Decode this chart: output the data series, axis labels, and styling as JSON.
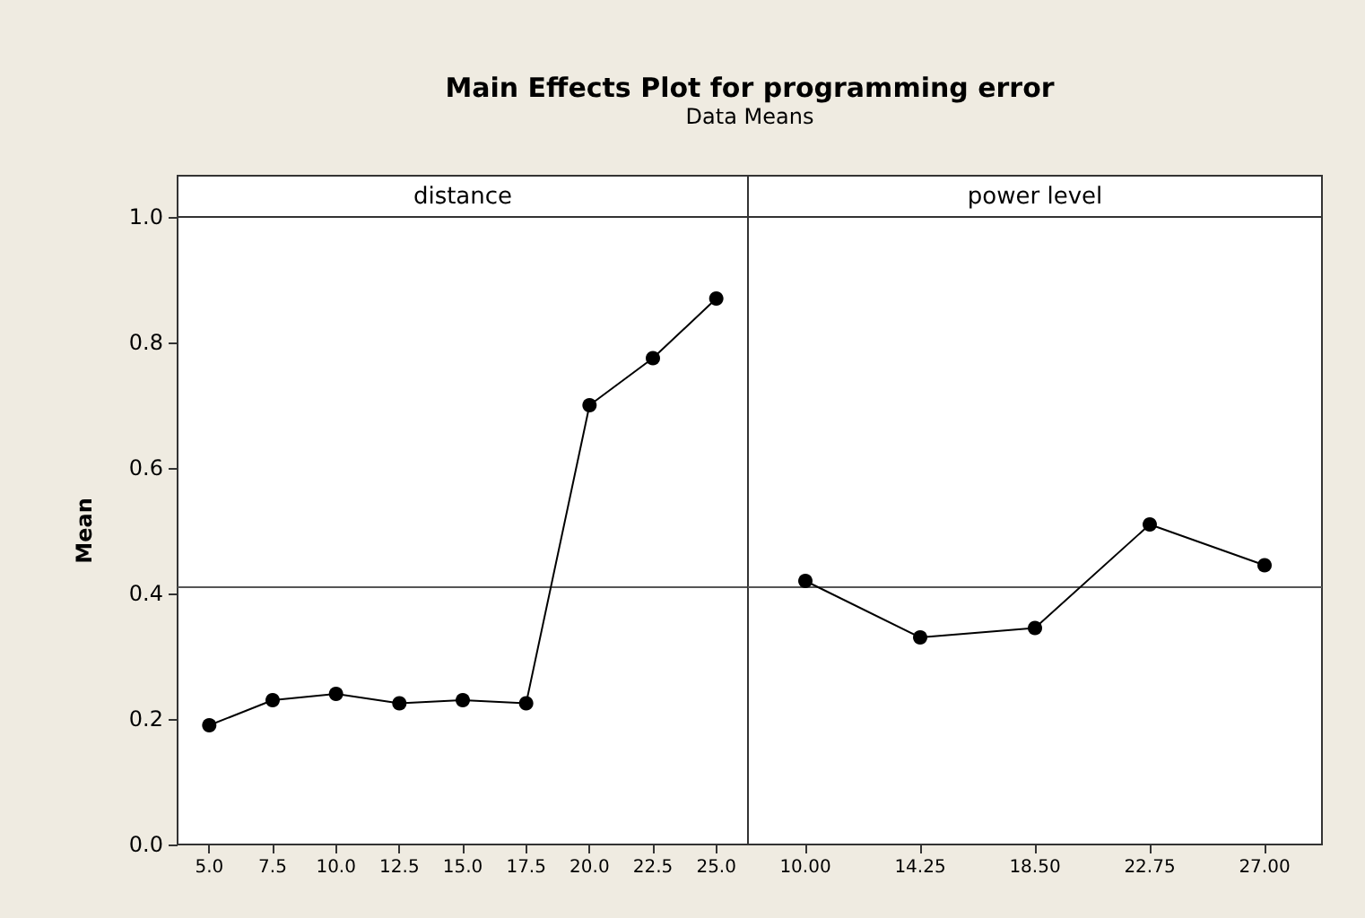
{
  "chart_data": [
    {
      "type": "line",
      "title": "Main Effects Plot for programming error",
      "subtitle": "Data Means",
      "xlabel": "distance",
      "ylabel": "Mean",
      "categories": [
        "5.0",
        "7.5",
        "10.0",
        "12.5",
        "15.0",
        "17.5",
        "20.0",
        "22.5",
        "25.0"
      ],
      "series": [
        {
          "color": "#000000",
          "values": [
            0.19,
            0.23,
            0.24,
            0.225,
            0.23,
            0.225,
            0.7,
            0.775,
            0.87
          ]
        }
      ],
      "ylim": [
        0,
        1
      ],
      "yticks": [
        {
          "value": 0,
          "label": "0.0"
        },
        {
          "value": 0.2,
          "label": "0.2"
        },
        {
          "value": 0.4,
          "label": "0.4"
        },
        {
          "value": 0.6,
          "label": "0.6"
        },
        {
          "value": 0.8,
          "label": "0.8"
        },
        {
          "value": 1,
          "label": "1.0"
        }
      ],
      "ref_lines": [
        {
          "axis": "y",
          "value": 0.41,
          "color": "#555555"
        }
      ],
      "marker": "circle",
      "line_style": "solid",
      "grid": false
    },
    {
      "type": "line",
      "xlabel": "power level",
      "categories": [
        "10.00",
        "14.25",
        "18.50",
        "22.75",
        "27.00"
      ],
      "series": [
        {
          "color": "#000000",
          "values": [
            0.42,
            0.33,
            0.345,
            0.51,
            0.445
          ]
        }
      ],
      "ylim": [
        0,
        1
      ],
      "ref_lines": [
        {
          "axis": "y",
          "value": 0.41,
          "color": "#555555"
        }
      ],
      "tick_labels": "x",
      "marker": "circle",
      "line_style": "solid",
      "grid": false
    }
  ]
}
